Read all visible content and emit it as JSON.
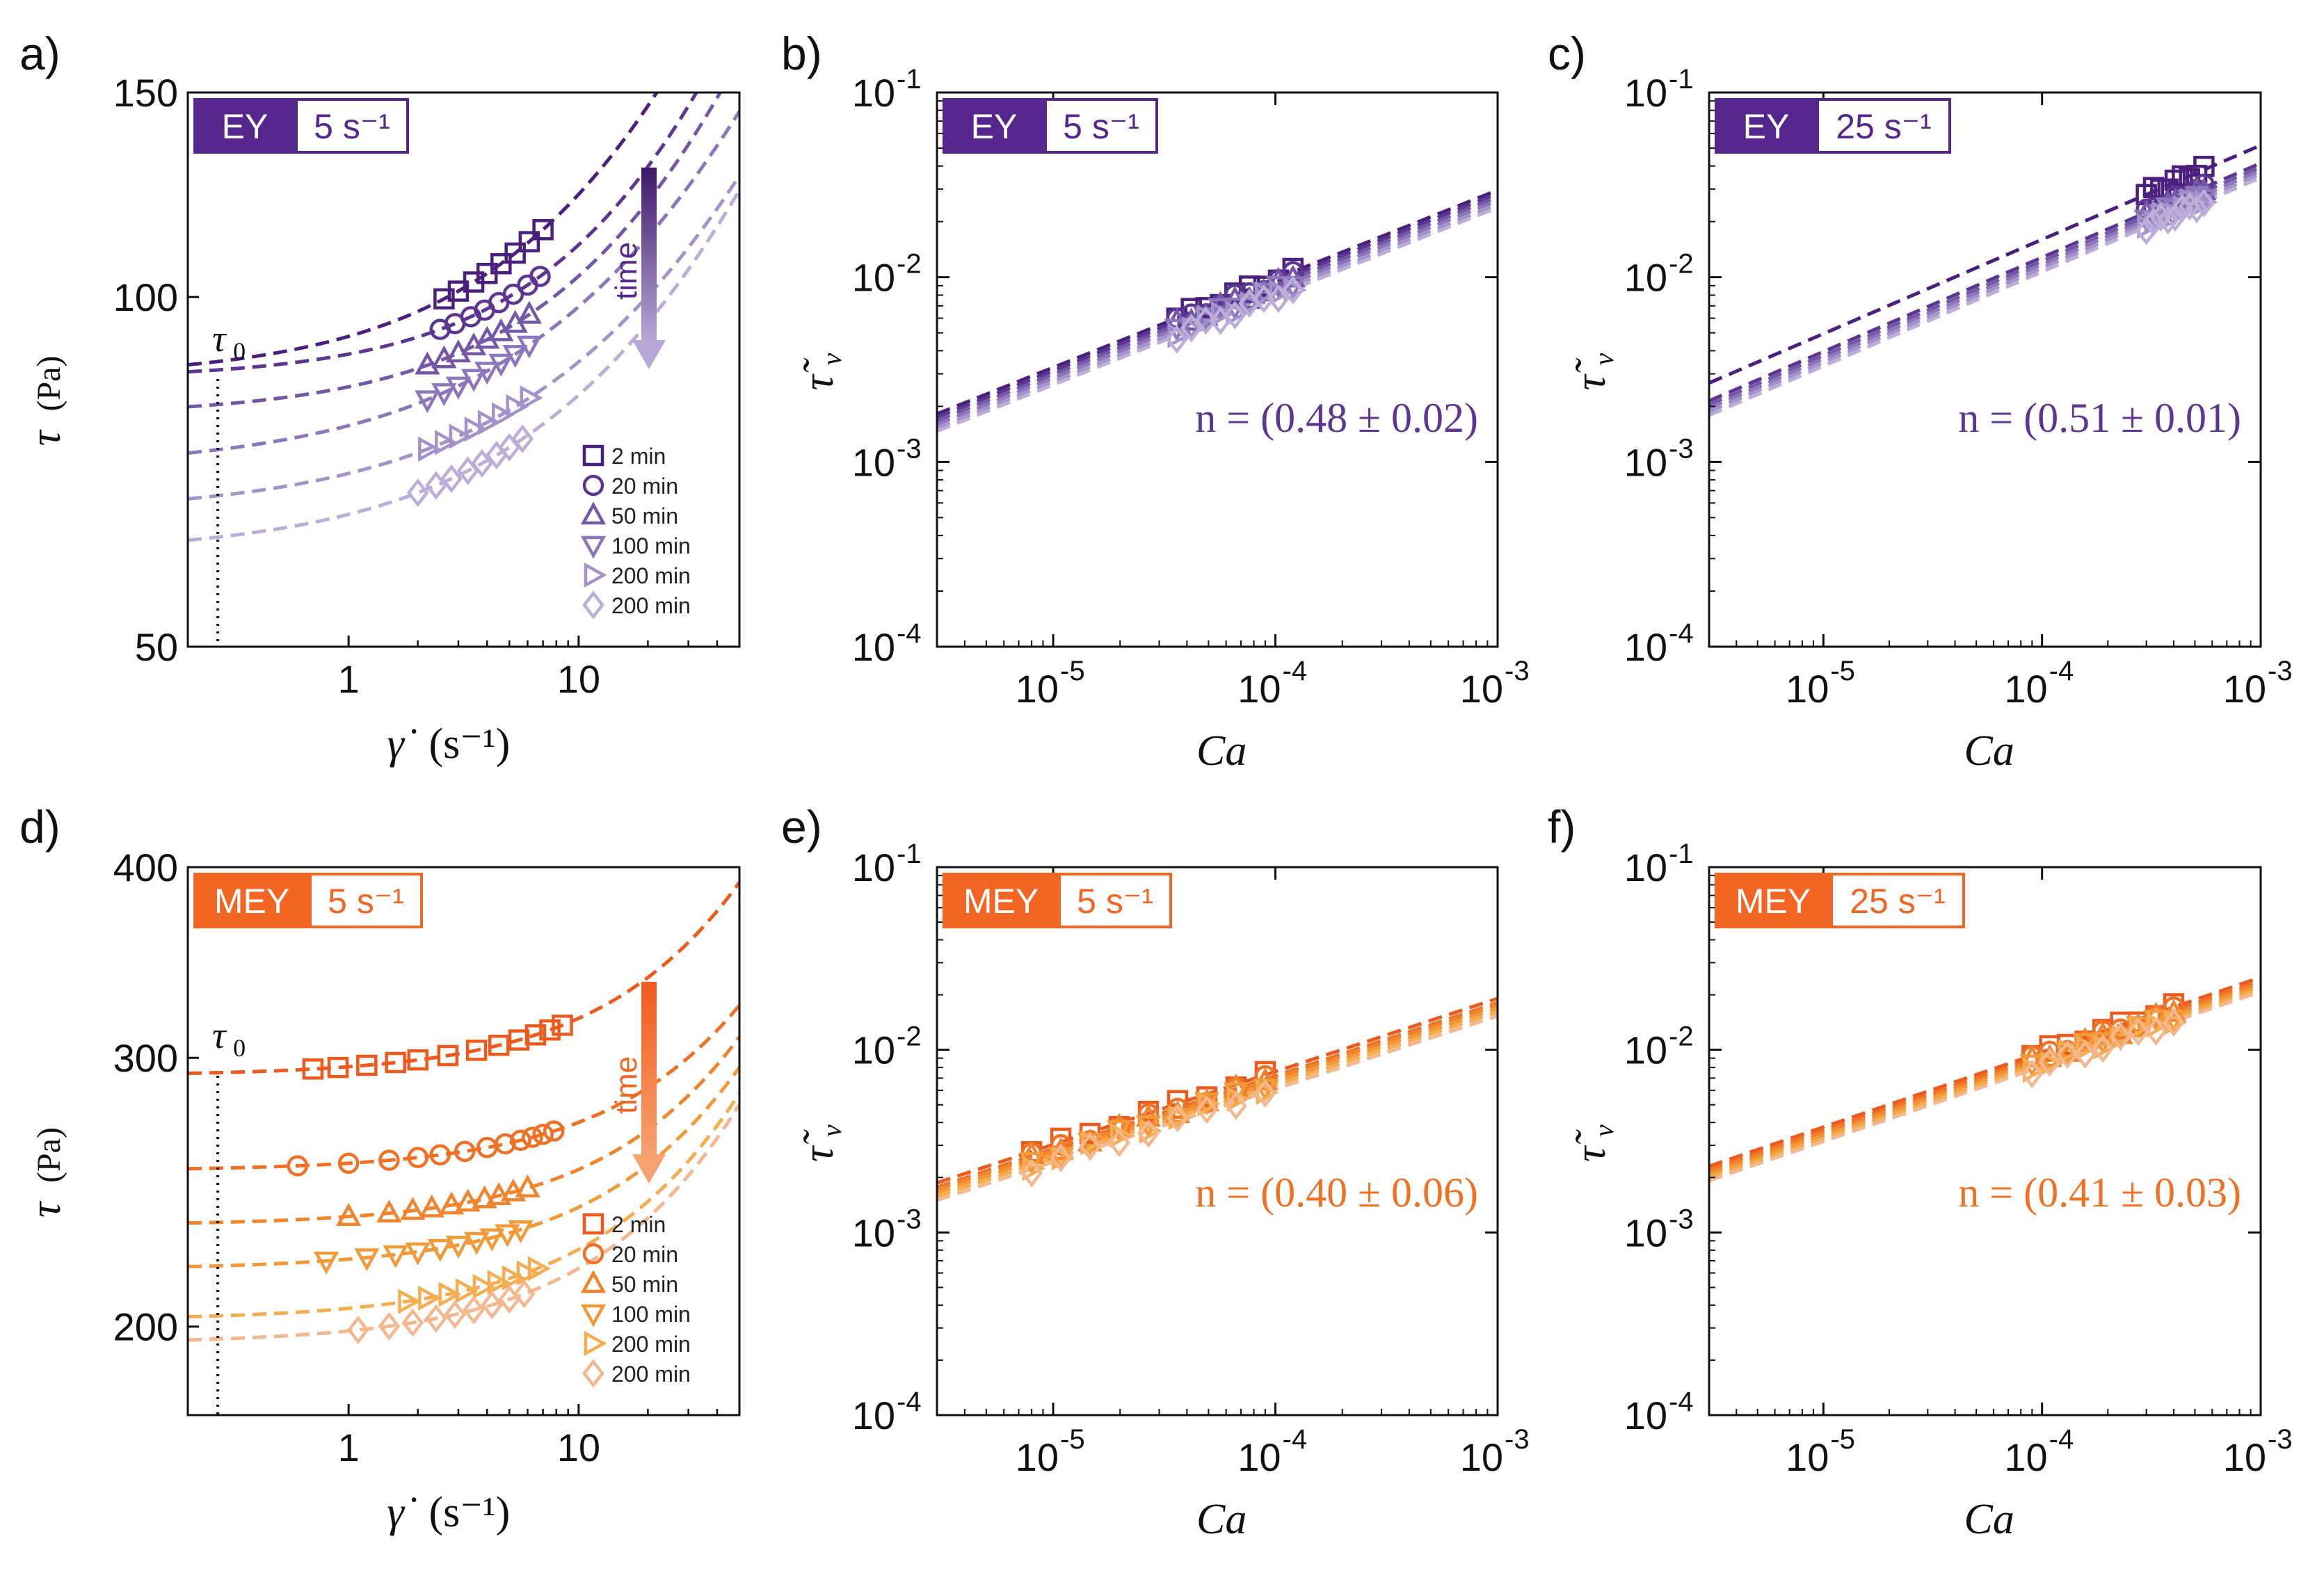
{
  "panel_labels": [
    "a)",
    "b)",
    "c)",
    "d)",
    "e)",
    "f)"
  ],
  "colors": {
    "EY": [
      "#4b1f7d",
      "#5d3592",
      "#7557a8",
      "#8d76bb",
      "#a493cb",
      "#bbaed9"
    ],
    "MEY": [
      "#ee5a1e",
      "#f07024",
      "#f1842c",
      "#f39a38",
      "#f5ad50",
      "#f4b78f"
    ],
    "EY_badge": "#55278c",
    "MEY_badge": "#f26522",
    "EY_arrow_top": "#3f1869",
    "EY_arrow_bottom": "#b5a8d6",
    "MEY_arrow_top": "#f15a1f",
    "MEY_arrow_bottom": "#f6a26e"
  },
  "legend_labels": [
    "2 min",
    "20 min",
    "50 min",
    "100 min",
    "200 min",
    "200 min"
  ],
  "marker_shapes": [
    "square",
    "circle",
    "triangle-up",
    "triangle-down",
    "triangle-right",
    "diamond"
  ],
  "tau0_label": "τ",
  "tau0_sub": "0",
  "time_label": "time",
  "chart_data": [
    {
      "id": "a",
      "type": "scatter",
      "xscale": "log",
      "yscale": "log",
      "xlim": [
        0.2,
        50
      ],
      "ylim": [
        50,
        150
      ],
      "yticks": [
        50,
        100,
        150
      ],
      "ytick_labels": [
        "50",
        "100",
        "150"
      ],
      "xticks": [
        1,
        10
      ],
      "xtick_labels": [
        "1",
        "10"
      ],
      "xlabel": "γ̇",
      "xlabel_unit": "(s⁻¹)",
      "ylabel": "τ",
      "ylabel_unit": "(Pa)",
      "badge": "EY",
      "badge_rate": "5 s⁻¹",
      "palette": "EY",
      "tau0": 0.27,
      "series": [
        {
          "name": "2 min",
          "tau0": 85,
          "k": 7.5,
          "n": 0.7,
          "x": [
            2.6,
            3.0,
            3.5,
            4.0,
            4.6,
            5.3,
            6.1,
            7.0
          ]
        },
        {
          "name": "20 min",
          "tau0": 85,
          "k": 4.3,
          "n": 0.78,
          "x": [
            2.5,
            2.9,
            3.4,
            3.9,
            4.5,
            5.2,
            6.0,
            6.8
          ]
        },
        {
          "name": "50 min",
          "tau0": 79,
          "k": 4.7,
          "n": 0.73,
          "x": [
            2.2,
            2.6,
            3.0,
            3.5,
            4.0,
            4.6,
            5.3,
            6.1
          ]
        },
        {
          "name": "100 min",
          "tau0": 71,
          "k": 6.5,
          "n": 0.62,
          "x": [
            2.2,
            2.6,
            3.0,
            3.5,
            4.0,
            4.6,
            5.3,
            6.1
          ]
        },
        {
          "name": "200 min",
          "tau0": 65,
          "k": 5.5,
          "n": 0.62,
          "x": [
            2.2,
            2.6,
            3.0,
            3.5,
            4.0,
            4.6,
            5.3,
            6.1
          ]
        },
        {
          "name": "200 min",
          "tau0": 60,
          "k": 5.0,
          "n": 0.65,
          "x": [
            2.0,
            2.4,
            2.8,
            3.3,
            3.8,
            4.4,
            5.0,
            5.7
          ]
        }
      ]
    },
    {
      "id": "b",
      "type": "scatter",
      "xscale": "log",
      "yscale": "log",
      "xlim": [
        3e-06,
        0.001
      ],
      "ylim": [
        0.0001,
        0.1
      ],
      "xticks": [
        1e-05,
        0.0001,
        0.001
      ],
      "xtick_exp": [
        "-5",
        "-4",
        "-3"
      ],
      "yticks": [
        0.0001,
        0.001,
        0.01,
        0.1
      ],
      "ytick_exp": [
        "-4",
        "-3",
        "-2",
        "-1"
      ],
      "xlabel": "Ca",
      "ylabel": "τ̃",
      "ylabel_sub": "v",
      "badge": "EY",
      "badge_rate": "5 s⁻¹",
      "palette": "EY",
      "annotation": "n =  (0.48  ±  0.02)",
      "fit_slope": 0.48,
      "fit_y_at_1e-4": [
        0.0098,
        0.0094,
        0.009,
        0.0086,
        0.0082,
        0.0079
      ],
      "data_x_range": [
        3.6e-05,
        0.00012
      ]
    },
    {
      "id": "c",
      "type": "scatter",
      "xscale": "log",
      "yscale": "log",
      "xlim": [
        3e-06,
        0.001
      ],
      "ylim": [
        0.0001,
        0.1
      ],
      "xticks": [
        1e-05,
        0.0001,
        0.001
      ],
      "xtick_exp": [
        "-5",
        "-4",
        "-3"
      ],
      "yticks": [
        0.0001,
        0.001,
        0.01,
        0.1
      ],
      "ytick_exp": [
        "-4",
        "-3",
        "-2",
        "-1"
      ],
      "xlabel": "Ca",
      "ylabel": "τ̃",
      "ylabel_sub": "v",
      "badge": "EY",
      "badge_rate": "25 s⁻¹",
      "palette": "EY",
      "annotation": "n =  (0.51  ±  0.01)",
      "fit_slope": 0.51,
      "fit_y_at_1e-4": [
        0.016,
        0.0128,
        0.0122,
        0.0117,
        0.0112,
        0.0107
      ],
      "data_x_range": [
        0.0003,
        0.00055
      ]
    },
    {
      "id": "d",
      "type": "scatter",
      "xscale": "log",
      "yscale": "log",
      "xlim": [
        0.2,
        50
      ],
      "ylim": [
        175,
        400
      ],
      "yticks": [
        200,
        300,
        400
      ],
      "ytick_labels": [
        "200",
        "300",
        "400"
      ],
      "xticks": [
        1,
        10
      ],
      "xtick_labels": [
        "1",
        "10"
      ],
      "xlabel": "γ̇",
      "xlabel_unit": "(s⁻¹)",
      "ylabel": "τ",
      "ylabel_unit": "(Pa)",
      "badge": "MEY",
      "badge_rate": "5 s⁻¹",
      "palette": "MEY",
      "tau0": 0.27,
      "series": [
        {
          "name": "2 min",
          "tau0": 292,
          "k": 4.0,
          "n": 0.82,
          "x": [
            0.7,
            0.9,
            1.2,
            1.6,
            2.0,
            2.7,
            3.6,
            4.5,
            5.5,
            6.5,
            7.5,
            8.5
          ]
        },
        {
          "name": "20 min",
          "tau0": 253,
          "k": 2.9,
          "n": 0.82,
          "x": [
            0.6,
            1.0,
            1.5,
            2.0,
            2.5,
            3.2,
            4.0,
            4.8,
            5.6,
            6.3,
            7.0,
            7.8
          ]
        },
        {
          "name": "50 min",
          "tau0": 233,
          "k": 3.1,
          "n": 0.82,
          "x": [
            1.0,
            1.5,
            1.9,
            2.3,
            2.8,
            3.3,
            3.9,
            4.5,
            5.2,
            6.0
          ]
        },
        {
          "name": "100 min",
          "tau0": 218,
          "k": 3.4,
          "n": 0.8,
          "x": [
            0.8,
            1.2,
            1.6,
            2.0,
            2.5,
            3.0,
            3.6,
            4.2,
            4.9,
            5.6
          ]
        },
        {
          "name": "200 min",
          "tau0": 202,
          "k": 3.6,
          "n": 0.8,
          "x": [
            1.8,
            2.2,
            2.7,
            3.2,
            3.8,
            4.4,
            5.1,
            5.9,
            6.6
          ]
        },
        {
          "name": "200 min",
          "tau0": 195,
          "k": 3.7,
          "n": 0.8,
          "x": [
            1.1,
            1.5,
            1.9,
            2.4,
            2.9,
            3.5,
            4.2,
            5.0,
            5.8
          ]
        }
      ]
    },
    {
      "id": "e",
      "type": "scatter",
      "xscale": "log",
      "yscale": "log",
      "xlim": [
        3e-06,
        0.001
      ],
      "ylim": [
        0.0001,
        0.1
      ],
      "xticks": [
        1e-05,
        0.0001,
        0.001
      ],
      "xtick_exp": [
        "-5",
        "-4",
        "-3"
      ],
      "yticks": [
        0.0001,
        0.001,
        0.01,
        0.1
      ],
      "ytick_exp": [
        "-4",
        "-3",
        "-2",
        "-1"
      ],
      "xlabel": "Ca",
      "ylabel": "τ̃",
      "ylabel_sub": "v",
      "badge": "MEY",
      "badge_rate": "5 s⁻¹",
      "palette": "MEY",
      "annotation": "n =  (0.40  ±  0.06)",
      "fit_slope": 0.4,
      "fit_y_at_1e-4": [
        0.0076,
        0.0072,
        0.007,
        0.0067,
        0.0064,
        0.0061
      ],
      "data_x_range": [
        8e-06,
        9e-05
      ]
    },
    {
      "id": "f",
      "type": "scatter",
      "xscale": "log",
      "yscale": "log",
      "xlim": [
        3e-06,
        0.001
      ],
      "ylim": [
        0.0001,
        0.1
      ],
      "xticks": [
        1e-05,
        0.0001,
        0.001
      ],
      "xtick_exp": [
        "-5",
        "-4",
        "-3"
      ],
      "yticks": [
        0.0001,
        0.001,
        0.01,
        0.1
      ],
      "ytick_exp": [
        "-4",
        "-3",
        "-2",
        "-1"
      ],
      "xlabel": "Ca",
      "ylabel": "τ̃",
      "ylabel_sub": "v",
      "badge": "MEY",
      "badge_rate": "25 s⁻¹",
      "palette": "MEY",
      "annotation": "n =  (0.41  ±  0.03)",
      "fit_slope": 0.41,
      "fit_y_at_1e-4": [
        0.0097,
        0.0093,
        0.009,
        0.0087,
        0.0084,
        0.0081
      ],
      "data_x_range": [
        9e-05,
        0.0004
      ]
    }
  ]
}
